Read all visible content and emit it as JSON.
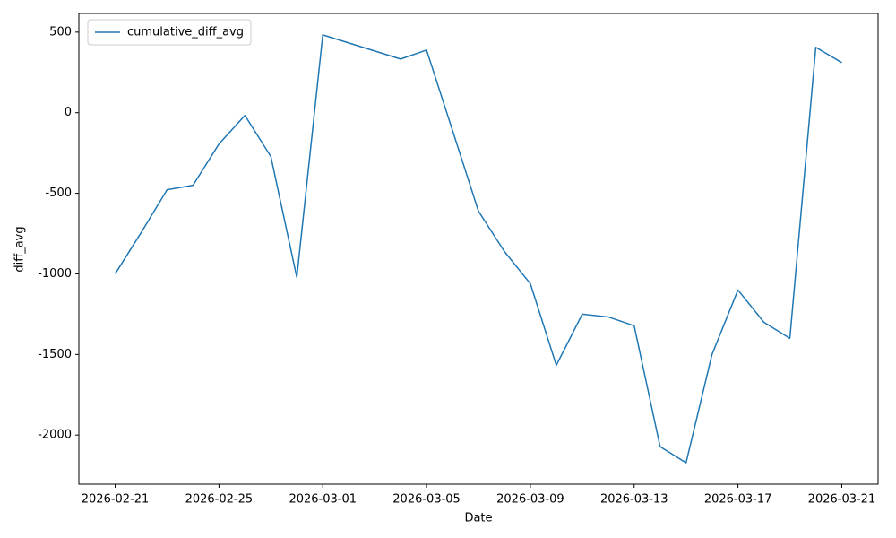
{
  "chart_data": {
    "type": "line",
    "x_label": "Date",
    "y_label": "diff_avg",
    "x": [
      "2026-02-21",
      "2026-02-22",
      "2026-02-23",
      "2026-02-24",
      "2026-02-25",
      "2026-02-26",
      "2026-02-27",
      "2026-02-28",
      "2026-03-01",
      "2026-03-02",
      "2026-03-03",
      "2026-03-04",
      "2026-03-05",
      "2026-03-06",
      "2026-03-07",
      "2026-03-08",
      "2026-03-09",
      "2026-03-10",
      "2026-03-11",
      "2026-03-12",
      "2026-03-13",
      "2026-03-14",
      "2026-03-15",
      "2026-03-16",
      "2026-03-17",
      "2026-03-18",
      "2026-03-19",
      "2026-03-20",
      "2026-03-21"
    ],
    "series": [
      {
        "name": "cumulative_diff_avg",
        "color": "#1f77b4",
        "values": [
          -1000,
          -744,
          -478,
          -450,
          -194,
          -17,
          -272,
          -1022,
          483,
          433,
          383,
          333,
          389,
          -110,
          -611,
          -861,
          -1061,
          -1567,
          -1250,
          -1267,
          -1322,
          -2072,
          -2172,
          -1500,
          -1100,
          -1300,
          -1400,
          406,
          311
        ]
      }
    ],
    "xlim": [
      "2026-02-19T14:24",
      "2026-03-22T09:36"
    ],
    "xticks": [
      "2026-02-21",
      "2026-02-25",
      "2026-03-01",
      "2026-03-05",
      "2026-03-09",
      "2026-03-13",
      "2026-03-17",
      "2026-03-21"
    ],
    "ylim": [
      -2305,
      616
    ],
    "yticks": [
      -2000,
      -1500,
      -1000,
      -500,
      0,
      500
    ],
    "legend": "upper left",
    "grid": false
  }
}
